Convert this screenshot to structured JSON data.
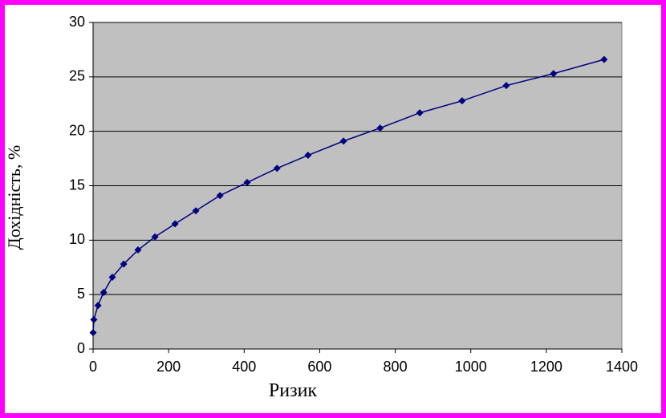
{
  "chart_data": {
    "type": "line",
    "xlabel": "Ризик",
    "ylabel": "Дохідність, %",
    "series": [
      {
        "color": "#000080",
        "x": [
          0,
          2,
          13,
          28,
          51,
          81,
          119,
          164,
          217,
          272,
          336,
          408,
          487,
          569,
          663,
          760,
          865,
          977,
          1094,
          1219,
          1353
        ],
        "values": [
          1.5,
          2.7,
          4.0,
          5.2,
          6.6,
          7.8,
          9.1,
          10.3,
          11.5,
          12.7,
          14.1,
          15.3,
          16.6,
          17.8,
          19.1,
          20.3,
          21.7,
          22.8,
          24.2,
          25.3,
          26.6
        ]
      }
    ],
    "xlim": [
      0,
      1400
    ],
    "xticks": [
      0,
      200,
      400,
      600,
      800,
      1000,
      1200,
      1400
    ],
    "ylim": [
      0,
      30
    ],
    "yticks": [
      0,
      5,
      10,
      15,
      20,
      25,
      30
    ],
    "grid": true,
    "plot_background": "#c0c0c0"
  }
}
